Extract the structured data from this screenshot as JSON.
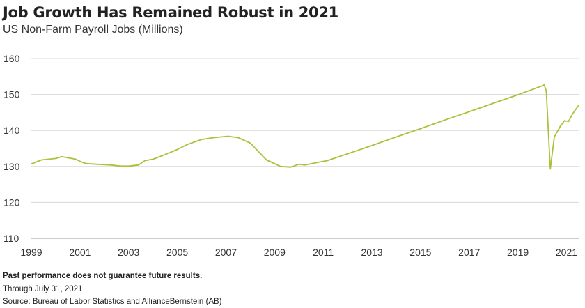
{
  "chart_data": {
    "type": "line",
    "title": "Job Growth Has Remained Robust in 2021",
    "subtitle": "US Non-Farm Payroll Jobs (Millions)",
    "xlabel": "",
    "ylabel": "",
    "ylim": [
      110,
      160
    ],
    "yticks": [
      "110",
      "120",
      "130",
      "140",
      "150",
      "160"
    ],
    "xticks": [
      "1999",
      "2001",
      "2003",
      "2005",
      "2007",
      "2009",
      "2011",
      "2013",
      "2015",
      "2017",
      "2019",
      "2021"
    ],
    "grid": "horizontal",
    "color": "#a9c23a",
    "x": [
      "1999-01",
      "1999-06",
      "2000-01",
      "2000-04",
      "2000-07",
      "2000-11",
      "2001-01",
      "2001-04",
      "2001-09",
      "2002-04",
      "2002-09",
      "2003-01",
      "2003-06",
      "2003-09",
      "2004-01",
      "2004-07",
      "2005-01",
      "2005-06",
      "2006-01",
      "2006-07",
      "2007-02",
      "2007-07",
      "2008-01",
      "2008-09",
      "2009-04",
      "2009-09",
      "2010-01",
      "2010-04",
      "2010-11",
      "2011-03",
      "2012-01",
      "2013-01",
      "2014-01",
      "2015-01",
      "2016-01",
      "2017-01",
      "2018-01",
      "2019-01",
      "2020-01",
      "2020-02",
      "2020-03",
      "2020-05",
      "2020-07",
      "2020-10",
      "2020-12",
      "2021-02",
      "2021-04",
      "2021-07"
    ],
    "values": [
      130.7,
      131.8,
      132.2,
      132.7,
      132.4,
      132.0,
      131.4,
      130.8,
      130.6,
      130.4,
      130.1,
      130.1,
      130.4,
      131.6,
      132.0,
      133.3,
      134.7,
      136.1,
      137.5,
      138.0,
      138.4,
      138.0,
      136.5,
      131.8,
      130.0,
      129.8,
      130.6,
      130.4,
      131.2,
      131.6,
      133.5,
      135.8,
      138.2,
      140.5,
      142.9,
      145.2,
      147.6,
      149.9,
      152.4,
      152.7,
      151.0,
      129.3,
      138.2,
      141.2,
      142.7,
      142.5,
      144.6,
      147.0
    ]
  },
  "footnotes": {
    "disclaimer": "Past performance does not guarantee future results.",
    "through": "Through July 31, 2021",
    "source": "Source: Bureau of Labor Statistics and AllianceBernstein (AB)"
  }
}
